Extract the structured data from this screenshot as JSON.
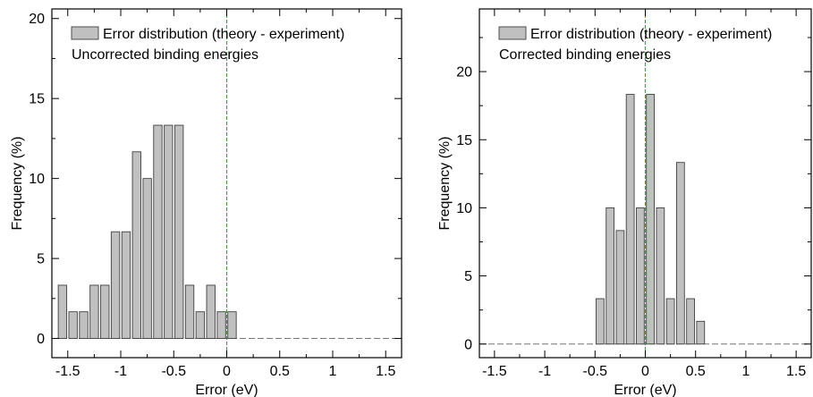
{
  "chart_data": [
    {
      "type": "bar",
      "xlabel": "Error (eV)",
      "ylabel": "Frequency (%)",
      "xlim": [
        -1.65,
        1.65
      ],
      "ylim": [
        -1.2,
        20.6
      ],
      "xticks": [
        "-1.5",
        "-1",
        "-0.5",
        "0",
        "0.5",
        "1",
        "1.5"
      ],
      "xtick_values": [
        -1.5,
        -1,
        -0.5,
        0,
        0.5,
        1,
        1.5
      ],
      "yticks": [
        "0",
        "5",
        "10",
        "15",
        "20"
      ],
      "ytick_values": [
        0,
        5,
        10,
        15,
        20
      ],
      "bin_width": 0.1,
      "bin_centers": [
        -1.55,
        -1.45,
        -1.35,
        -1.25,
        -1.15,
        -1.05,
        -0.95,
        -0.85,
        -0.75,
        -0.65,
        -0.55,
        -0.45,
        -0.35,
        -0.25,
        -0.15,
        -0.05,
        0.05,
        0.15,
        0.25,
        0.35,
        0.45,
        0.55,
        0.65,
        0.75,
        0.85,
        0.95,
        1.05,
        1.15,
        1.25,
        1.35,
        1.45,
        1.55
      ],
      "values": [
        3.33,
        1.67,
        1.67,
        3.33,
        3.33,
        6.67,
        6.67,
        11.67,
        10.0,
        13.33,
        13.33,
        13.33,
        3.33,
        1.67,
        3.33,
        1.67,
        1.67,
        0,
        0,
        0,
        0,
        0,
        0,
        0,
        0,
        0,
        0,
        0,
        0,
        0,
        0,
        0
      ],
      "vline_x": 0,
      "legend": {
        "entry": "Error distribution (theory - experiment)",
        "note": "Uncorrected binding energies",
        "placement": "top-left"
      },
      "colors": {
        "bar_fill": "#c0c0c0",
        "bar_edge": "#404040",
        "vline": "#33aa33"
      }
    },
    {
      "type": "bar",
      "xlabel": "Error (eV)",
      "ylabel": "Frequency (%)",
      "xlim": [
        -1.65,
        1.65
      ],
      "ylim": [
        -1.0,
        24.6
      ],
      "xticks": [
        "-1.5",
        "-1",
        "-0.5",
        "0",
        "0.5",
        "1",
        "1.5"
      ],
      "xtick_values": [
        -1.5,
        -1,
        -0.5,
        0,
        0.5,
        1,
        1.5
      ],
      "yticks": [
        "0",
        "5",
        "10",
        "15",
        "20"
      ],
      "ytick_values": [
        0,
        5,
        10,
        15,
        20
      ],
      "bin_width": 0.1,
      "bin_centers": [
        -1.55,
        -1.45,
        -1.35,
        -1.25,
        -1.15,
        -1.05,
        -0.95,
        -0.85,
        -0.75,
        -0.65,
        -0.55,
        -0.45,
        -0.35,
        -0.25,
        -0.15,
        -0.05,
        0.05,
        0.15,
        0.25,
        0.35,
        0.45,
        0.55,
        0.65,
        0.75,
        0.85,
        0.95,
        1.05,
        1.15,
        1.25,
        1.35,
        1.45,
        1.55
      ],
      "values": [
        0,
        0,
        0,
        0,
        0,
        0,
        0,
        0,
        0,
        0,
        0,
        3.33,
        10.0,
        8.33,
        18.33,
        10.0,
        18.33,
        10.0,
        3.33,
        13.33,
        3.33,
        1.67,
        0,
        0,
        0,
        0,
        0,
        0,
        0,
        0,
        0,
        0
      ],
      "vline_x": 0,
      "legend": {
        "entry": "Error distribution (theory - experiment)",
        "note": "Corrected binding energies",
        "placement": "top-left"
      },
      "colors": {
        "bar_fill": "#c0c0c0",
        "bar_edge": "#404040",
        "vline": "#33aa33"
      }
    }
  ]
}
